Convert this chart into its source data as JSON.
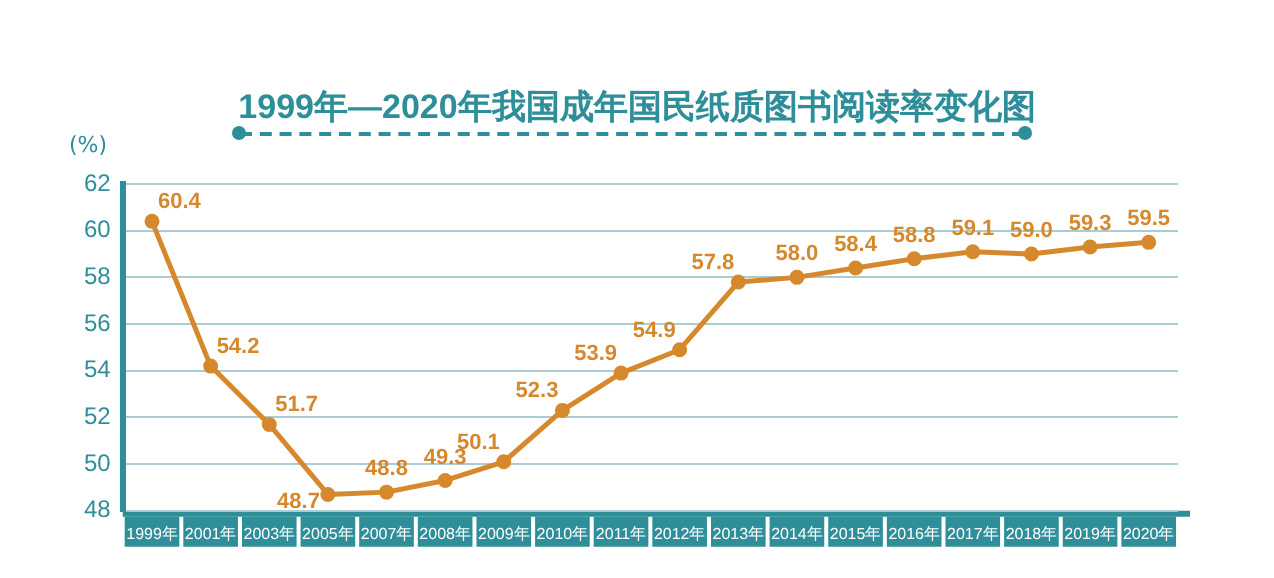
{
  "chart_data": {
    "type": "line",
    "title": "1999年—2020年我国成年国民纸质图书阅读率变化图",
    "ylabel": "(%)",
    "categories": [
      "1999年",
      "2001年",
      "2003年",
      "2005年",
      "2007年",
      "2008年",
      "2009年",
      "2010年",
      "2011年",
      "2012年",
      "2013年",
      "2014年",
      "2015年",
      "2016年",
      "2017年",
      "2018年",
      "2019年",
      "2020年"
    ],
    "series": [
      {
        "color": "#d6892c",
        "values": [
          60.4,
          54.2,
          51.7,
          48.7,
          48.8,
          49.3,
          50.1,
          52.3,
          53.9,
          54.9,
          57.8,
          58.0,
          58.4,
          58.8,
          59.1,
          59.0,
          59.3,
          59.5
        ],
        "value_labels": [
          "60.4",
          "54.2",
          "51.7",
          "48.7",
          "48.8",
          "49.3",
          "50.1",
          "52.3",
          "53.9",
          "54.9",
          "57.8",
          "58.0",
          "58.4",
          "58.8",
          "59.1",
          "59.0",
          "59.3",
          "59.5"
        ]
      }
    ],
    "ylim": [
      48,
      62
    ],
    "yticks": [
      48,
      50,
      52,
      54,
      56,
      58,
      60,
      62
    ],
    "grid": "y",
    "legend": false,
    "marker": "circle",
    "line_style": "solid"
  }
}
